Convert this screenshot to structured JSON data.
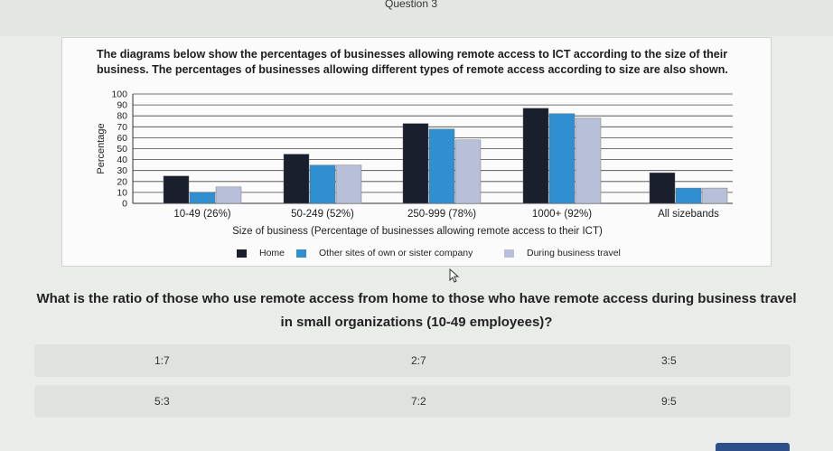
{
  "header": {
    "question_number": "Question 3"
  },
  "chart_description": "The diagrams below show the percentages of businesses allowing remote access to ICT according to the size of their business. The percentages of businesses allowing different types of remote access according to size are also shown.",
  "question": {
    "text": "What is the ratio of those who use remote access from home to those who have remote access during business travel in small organizations (10-49 employees)?"
  },
  "answers": [
    {
      "label": "1:7"
    },
    {
      "label": "2:7"
    },
    {
      "label": "3:5"
    },
    {
      "label": "5:3"
    },
    {
      "label": "7:2"
    },
    {
      "label": "9:5"
    }
  ],
  "icons": {
    "cursor": "mouse-pointer-icon"
  },
  "chart_data": {
    "type": "bar",
    "ylabel": "Percentage",
    "xlabel": "Size of business (Percentage of businesses allowing remote access to their ICT)",
    "ylim": [
      0,
      100
    ],
    "yticks": [
      0,
      10,
      20,
      30,
      40,
      50,
      60,
      70,
      80,
      90,
      100
    ],
    "grid": true,
    "legend_position": "bottom",
    "categories": [
      "10-49 (26%)",
      "50-249 (52%)",
      "250-999 (78%)",
      "1000+ (92%)",
      "All sizebands"
    ],
    "series": [
      {
        "name": "Home",
        "color": "#1a1f2e",
        "values": [
          25,
          45,
          73,
          87,
          28
        ]
      },
      {
        "name": "Other sites of own or sister company",
        "color": "#2f8fd0",
        "values": [
          10,
          35,
          68,
          82,
          14
        ]
      },
      {
        "name": "During business travel",
        "color": "#b7c0d8",
        "values": [
          15,
          35,
          58,
          78,
          14
        ]
      }
    ]
  }
}
